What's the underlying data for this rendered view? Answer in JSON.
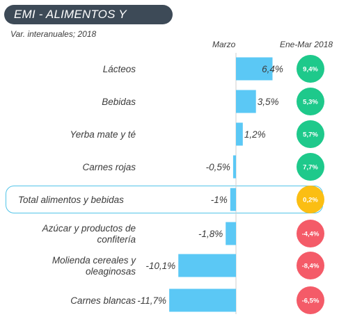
{
  "header": {
    "title": "EMI - ALIMENTOS Y BEBIDAS",
    "subtitle": "Var. interanuales; 2018",
    "col_march": "Marzo",
    "col_ytd": "Ene-Mar 2018"
  },
  "colors": {
    "bar": "#5bc8f5",
    "positive": "#1ec98b",
    "neutral": "#fbbe13",
    "negative": "#f45b68",
    "title_bg": "#3d4a57",
    "frame": "#52c4e8"
  },
  "chart_data": {
    "type": "bar",
    "orientation": "horizontal",
    "title": "EMI - ALIMENTOS Y BEBIDAS",
    "subtitle": "Var. interanuales; 2018",
    "categories": [
      [
        "Lácteos"
      ],
      [
        "Bebidas"
      ],
      [
        "Yerba mate y té"
      ],
      [
        "Carnes rojas"
      ],
      [
        "Total alimentos y bebidas"
      ],
      [
        "Azúcar y productos de",
        "confitería"
      ],
      [
        "Molienda cereales y",
        "oleaginosas"
      ],
      [
        "Carnes blancas"
      ]
    ],
    "series": [
      {
        "name": "Marzo",
        "values": [
          6.4,
          3.5,
          1.2,
          -0.5,
          -1.0,
          -1.8,
          -10.1,
          -11.7
        ],
        "labels": [
          "6,4%",
          "3,5%",
          "1,2%",
          "-0,5%",
          "-1%",
          "-1,8%",
          "-10,1%",
          "-11,7%"
        ]
      },
      {
        "name": "Ene-Mar 2018",
        "values": [
          9.4,
          5.3,
          5.7,
          7.7,
          0.2,
          -4.4,
          -8.4,
          -6.5
        ],
        "labels": [
          "9,4%",
          "5,3%",
          "5,7%",
          "7,7%",
          "0,2%",
          "-4,4%",
          "-8,4%",
          "-6,5%"
        ],
        "status": [
          "positive",
          "positive",
          "positive",
          "positive",
          "neutral",
          "negative",
          "negative",
          "negative"
        ]
      }
    ],
    "highlight_index": 4,
    "grid": false,
    "legend": "none"
  }
}
